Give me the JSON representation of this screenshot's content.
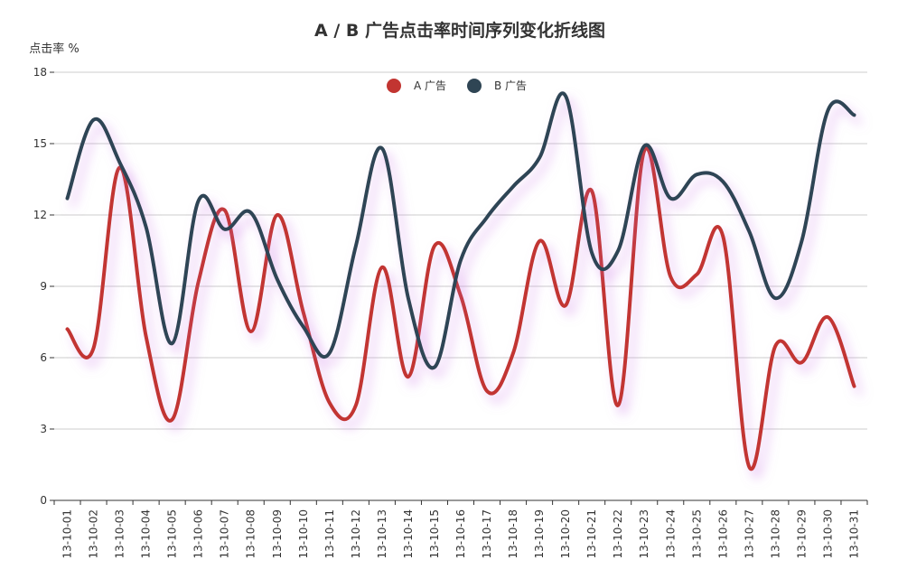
{
  "chart_data": {
    "type": "line",
    "title": "A / B 广告点击率时间序列变化折线图",
    "ylabel": "点击率 %",
    "xlabel": "",
    "ylim": [
      0,
      18
    ],
    "yticks": [
      0,
      3,
      6,
      9,
      12,
      15,
      18
    ],
    "grid": true,
    "legend_position": "top-center",
    "smooth": true,
    "categories": [
      "13-10-01",
      "13-10-02",
      "13-10-03",
      "13-10-04",
      "13-10-05",
      "13-10-06",
      "13-10-07",
      "13-10-08",
      "13-10-09",
      "13-10-10",
      "13-10-11",
      "13-10-12",
      "13-10-13",
      "13-10-14",
      "13-10-15",
      "13-10-16",
      "13-10-17",
      "13-10-18",
      "13-10-19",
      "13-10-20",
      "13-10-21",
      "13-10-22",
      "13-10-23",
      "13-10-24",
      "13-10-25",
      "13-10-26",
      "13-10-27",
      "13-10-28",
      "13-10-29",
      "13-10-30",
      "13-10-31"
    ],
    "series": [
      {
        "name": "A 广告",
        "color": "#c23531",
        "values": [
          7.2,
          6.4,
          14.0,
          6.9,
          3.4,
          9.2,
          12.2,
          7.1,
          12.0,
          7.9,
          4.1,
          4.0,
          9.8,
          5.2,
          10.7,
          8.6,
          4.6,
          6.2,
          10.9,
          8.2,
          13.0,
          4.0,
          14.7,
          9.4,
          9.5,
          11.1,
          1.4,
          6.5,
          5.8,
          7.7,
          4.8
        ]
      },
      {
        "name": "B 广告",
        "color": "#2f4554",
        "values": [
          12.7,
          16.0,
          14.2,
          11.5,
          6.6,
          12.6,
          11.4,
          12.1,
          9.3,
          7.3,
          6.2,
          10.7,
          14.8,
          8.5,
          5.6,
          10.1,
          11.9,
          13.2,
          14.4,
          17.0,
          10.4,
          10.5,
          14.9,
          12.7,
          13.7,
          13.4,
          11.3,
          8.5,
          10.9,
          16.4,
          16.2
        ]
      }
    ]
  }
}
